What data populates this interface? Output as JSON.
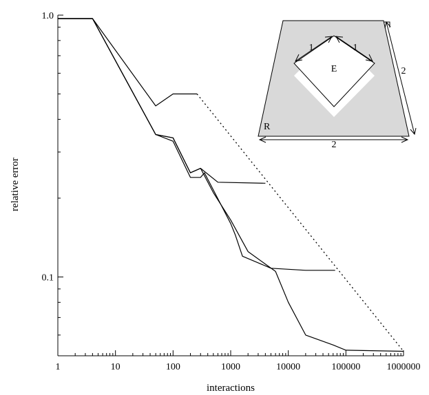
{
  "chart_data": {
    "type": "line",
    "xlabel": "interactions",
    "ylabel": "relative error",
    "xscale": "log",
    "yscale": "log",
    "xlim": [
      1,
      1000000
    ],
    "ylim": [
      0.05,
      1.0
    ],
    "xticks": [
      {
        "value": 1,
        "label": "1"
      },
      {
        "value": 10,
        "label": "10"
      },
      {
        "value": 100,
        "label": "100"
      },
      {
        "value": 1000,
        "label": "1000"
      },
      {
        "value": 10000,
        "label": "10000"
      },
      {
        "value": 100000,
        "label": "100000"
      },
      {
        "value": 1000000,
        "label": "1000000"
      }
    ],
    "yticks": [
      {
        "value": 0.1,
        "label": "0.1"
      },
      {
        "value": 1.0,
        "label": "1.0"
      }
    ],
    "grid": false,
    "series": [
      {
        "style": "solid",
        "points": [
          [
            1,
            0.97
          ],
          [
            4,
            0.97
          ],
          [
            50,
            0.45
          ],
          [
            100,
            0.5
          ],
          [
            260,
            0.5
          ]
        ]
      },
      {
        "style": "solid",
        "points": [
          [
            1,
            0.97
          ],
          [
            4,
            0.97
          ],
          [
            50,
            0.35
          ],
          [
            100,
            0.34
          ],
          [
            200,
            0.25
          ],
          [
            300,
            0.26
          ],
          [
            600,
            0.23
          ],
          [
            4000,
            0.228
          ]
        ]
      },
      {
        "style": "solid",
        "points": [
          [
            1,
            0.97
          ],
          [
            4,
            0.97
          ],
          [
            50,
            0.35
          ],
          [
            100,
            0.33
          ],
          [
            200,
            0.24
          ],
          [
            300,
            0.24
          ],
          [
            350,
            0.25
          ],
          [
            500,
            0.215
          ],
          [
            1000,
            0.16
          ],
          [
            1200,
            0.145
          ],
          [
            1600,
            0.12
          ],
          [
            5000,
            0.108
          ],
          [
            20000,
            0.106
          ],
          [
            65000,
            0.106
          ]
        ]
      },
      {
        "style": "solid",
        "points": [
          [
            1,
            0.97
          ],
          [
            4,
            0.97
          ],
          [
            50,
            0.35
          ],
          [
            100,
            0.34
          ],
          [
            200,
            0.25
          ],
          [
            300,
            0.26
          ],
          [
            500,
            0.21
          ],
          [
            1000,
            0.165
          ],
          [
            2000,
            0.125
          ],
          [
            6000,
            0.105
          ],
          [
            10000,
            0.08
          ],
          [
            20000,
            0.06
          ],
          [
            60000,
            0.055
          ],
          [
            100000,
            0.0525
          ],
          [
            1000000,
            0.052
          ]
        ]
      },
      {
        "style": "dotted",
        "points": [
          [
            260,
            0.5
          ],
          [
            1000000,
            0.052
          ]
        ]
      }
    ],
    "inset": {
      "labels": {
        "R": "R",
        "E": "E",
        "side_diamond_left": "1",
        "side_diamond_right": "1",
        "side_bottom": "2",
        "side_right": "2"
      },
      "colors": {
        "fill": "#d9d9d9",
        "hole": "#ffffff"
      }
    }
  }
}
